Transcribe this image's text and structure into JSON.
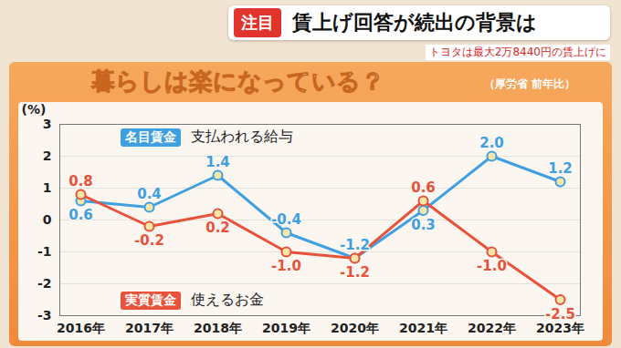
{
  "header": {
    "badge": "注目",
    "headline": "賃上げ回答が続出の背景は",
    "ticker": "トヨタは最大2万8440円の賃上げに"
  },
  "chart_data": {
    "type": "line",
    "title": "暮らしは楽になっている？",
    "subtitle": "（厚労省 前年比）",
    "ylabel": "(%)",
    "categories": [
      "2016年",
      "2017年",
      "2018年",
      "2019年",
      "2020年",
      "2021年",
      "2022年",
      "2023年"
    ],
    "series": [
      {
        "name": "名目賃金",
        "description": "支払われる給与",
        "color": "#3f9fe0",
        "values": [
          0.6,
          0.4,
          1.4,
          -0.4,
          -1.2,
          0.3,
          2.0,
          1.2
        ],
        "value_labels": [
          "0.6",
          "0.4",
          "1.4",
          "-0.4",
          "-1.2",
          "0.3",
          "2.0",
          "1.2"
        ]
      },
      {
        "name": "実質賃金",
        "description": "使えるお金",
        "color": "#e8523a",
        "values": [
          0.8,
          -0.2,
          0.2,
          -1.0,
          -1.2,
          0.6,
          -1.0,
          -2.5
        ],
        "value_labels": [
          "0.8",
          "-0.2",
          "0.2",
          "-1.0",
          "-1.2",
          "0.6",
          "-1.0",
          "-2.5"
        ]
      }
    ],
    "ylim": [
      -3,
      3
    ],
    "yticks": [
      -3,
      -2,
      -1,
      0,
      1,
      2,
      3
    ],
    "grid": true,
    "data_labels": true,
    "marker": "circle",
    "legend": "left"
  }
}
